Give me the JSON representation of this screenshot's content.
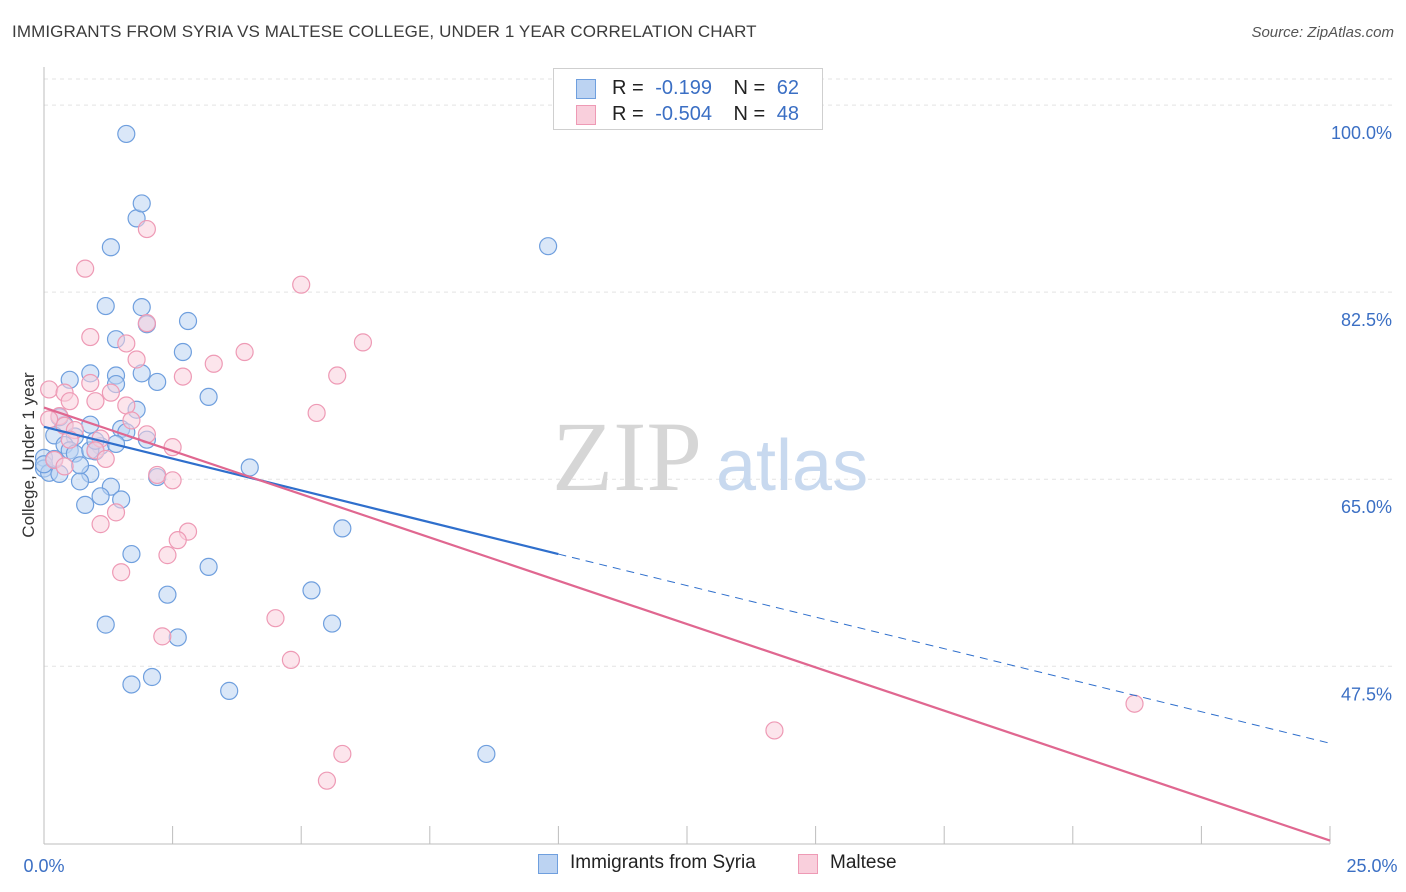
{
  "chart_data": {
    "type": "scatter",
    "title": "IMMIGRANTS FROM SYRIA VS MALTESE COLLEGE, UNDER 1 YEAR CORRELATION CHART",
    "source": "Source: ZipAtlas.com",
    "xlabel": "",
    "ylabel": "College, Under 1 year",
    "xlim": [
      0,
      25
    ],
    "ylim": [
      32,
      103
    ],
    "x_tick_labels": [
      "0.0%",
      "25.0%"
    ],
    "y_ticks": [
      100,
      82.5,
      65,
      47.5
    ],
    "y_tick_labels": [
      "100.0%",
      "82.5%",
      "65.0%",
      "47.5%"
    ],
    "grid": true,
    "watermark": {
      "zip": "ZIP",
      "atlas": "atlas"
    },
    "legend_stats": [
      {
        "r_label": "R =",
        "r_value": "-0.199",
        "n_label": "N =",
        "n_value": "62"
      },
      {
        "r_label": "R =",
        "r_value": "-0.504",
        "n_label": "N =",
        "n_value": "48"
      }
    ],
    "series": [
      {
        "name": "Immigrants from Syria",
        "color": "#6f9fde",
        "fill": "#bcd3f2",
        "line_color": "#2f6fcc",
        "trend": {
          "x0": 0,
          "y0": 69.9,
          "x1": 10,
          "y1": 58.0,
          "dash_to_x": 25,
          "dash_to_y": 40.3
        },
        "points": [
          [
            1.6,
            97.3
          ],
          [
            1.8,
            89.4
          ],
          [
            1.9,
            90.8
          ],
          [
            1.3,
            86.7
          ],
          [
            9.8,
            86.8
          ],
          [
            1.2,
            81.2
          ],
          [
            1.9,
            81.1
          ],
          [
            2.0,
            79.5
          ],
          [
            2.8,
            79.8
          ],
          [
            1.4,
            78.1
          ],
          [
            2.7,
            76.9
          ],
          [
            0.5,
            74.3
          ],
          [
            0.9,
            74.9
          ],
          [
            1.4,
            74.7
          ],
          [
            1.9,
            74.9
          ],
          [
            1.4,
            73.9
          ],
          [
            2.2,
            74.1
          ],
          [
            3.2,
            72.7
          ],
          [
            1.8,
            71.5
          ],
          [
            0.4,
            70.1
          ],
          [
            0.9,
            70.1
          ],
          [
            1.5,
            69.7
          ],
          [
            1.6,
            69.4
          ],
          [
            2.0,
            68.7
          ],
          [
            0.2,
            69.1
          ],
          [
            0.6,
            69.0
          ],
          [
            0.4,
            68.2
          ],
          [
            1.1,
            68.1
          ],
          [
            0.5,
            67.7
          ],
          [
            0.6,
            67.4
          ],
          [
            1.0,
            67.6
          ],
          [
            0.9,
            67.7
          ],
          [
            4.0,
            66.1
          ],
          [
            0.0,
            67.0
          ],
          [
            0.0,
            66.0
          ],
          [
            0.1,
            65.6
          ],
          [
            0.3,
            65.5
          ],
          [
            0.9,
            65.5
          ],
          [
            2.2,
            65.2
          ],
          [
            0.7,
            64.8
          ],
          [
            1.3,
            64.3
          ],
          [
            1.1,
            63.4
          ],
          [
            1.5,
            63.1
          ],
          [
            0.8,
            62.6
          ],
          [
            5.8,
            60.4
          ],
          [
            1.7,
            58.0
          ],
          [
            3.2,
            56.8
          ],
          [
            2.4,
            54.2
          ],
          [
            5.2,
            54.6
          ],
          [
            1.2,
            51.4
          ],
          [
            2.6,
            50.2
          ],
          [
            5.6,
            51.5
          ],
          [
            2.1,
            46.5
          ],
          [
            1.7,
            45.8
          ],
          [
            3.6,
            45.2
          ],
          [
            8.6,
            39.3
          ],
          [
            0.0,
            66.4
          ],
          [
            0.2,
            66.9
          ],
          [
            0.7,
            66.3
          ],
          [
            1.0,
            68.6
          ],
          [
            0.3,
            70.8
          ],
          [
            1.4,
            68.3
          ]
        ]
      },
      {
        "name": "Maltese",
        "color": "#ee9ab5",
        "fill": "#f9cfdc",
        "line_color": "#e06790",
        "trend": {
          "x0": 0,
          "y0": 71.7,
          "x1": 25,
          "y1": 31.2
        },
        "points": [
          [
            2.0,
            88.4
          ],
          [
            0.8,
            84.7
          ],
          [
            5.0,
            83.2
          ],
          [
            2.0,
            79.6
          ],
          [
            0.9,
            78.3
          ],
          [
            1.6,
            77.7
          ],
          [
            6.2,
            77.8
          ],
          [
            3.9,
            76.9
          ],
          [
            1.8,
            76.2
          ],
          [
            3.3,
            75.8
          ],
          [
            5.7,
            74.7
          ],
          [
            2.7,
            74.6
          ],
          [
            0.9,
            74.0
          ],
          [
            0.1,
            73.4
          ],
          [
            0.4,
            73.1
          ],
          [
            1.3,
            73.1
          ],
          [
            1.0,
            72.3
          ],
          [
            0.5,
            72.3
          ],
          [
            1.6,
            71.9
          ],
          [
            5.3,
            71.2
          ],
          [
            0.3,
            70.9
          ],
          [
            1.7,
            70.5
          ],
          [
            0.4,
            70.0
          ],
          [
            0.6,
            69.6
          ],
          [
            2.0,
            69.2
          ],
          [
            0.5,
            68.7
          ],
          [
            1.1,
            68.8
          ],
          [
            2.5,
            68.0
          ],
          [
            1.0,
            67.7
          ],
          [
            1.2,
            66.9
          ],
          [
            0.2,
            66.8
          ],
          [
            0.4,
            66.2
          ],
          [
            2.2,
            65.4
          ],
          [
            2.5,
            64.9
          ],
          [
            1.4,
            61.9
          ],
          [
            1.1,
            60.8
          ],
          [
            2.8,
            60.1
          ],
          [
            2.6,
            59.3
          ],
          [
            2.4,
            57.9
          ],
          [
            1.5,
            56.3
          ],
          [
            4.5,
            52.0
          ],
          [
            2.3,
            50.3
          ],
          [
            4.8,
            48.1
          ],
          [
            21.2,
            44.0
          ],
          [
            14.2,
            41.5
          ],
          [
            5.8,
            39.3
          ],
          [
            5.5,
            36.8
          ],
          [
            0.1,
            70.6
          ]
        ]
      }
    ]
  }
}
